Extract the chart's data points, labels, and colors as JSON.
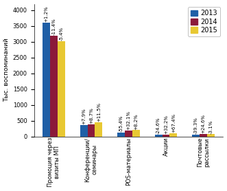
{
  "categories": [
    "Промоция через\nвизиты МП",
    "Конференции/\nсеминары",
    "POS-материалы",
    "Акции",
    "Почтовые\nрассылки"
  ],
  "series": {
    "2013": [
      3600,
      370,
      130,
      50,
      65
    ],
    "2014": [
      3200,
      390,
      190,
      65,
      75
    ],
    "2015": [
      3020,
      450,
      200,
      105,
      70
    ]
  },
  "colors": {
    "2013": "#1F5FA6",
    "2014": "#8B1A3A",
    "2015": "#E8C832"
  },
  "annotations": {
    "2013": [
      "+1.2%",
      "+7.9%",
      "-55.4%",
      "-24.6%",
      "-39.3%"
    ],
    "2014": [
      "-11.4%",
      "+8.7%",
      "+32.1%",
      "+32.2%",
      "+24.6%"
    ],
    "2015": [
      "-5.4%",
      "+11.5%",
      "+8.2%",
      "+67.4%",
      "-3.1%"
    ]
  },
  "ylabel": "Тыс. воспоминаний",
  "ylim": [
    0,
    4200
  ],
  "yticks": [
    0,
    500,
    1000,
    1500,
    2000,
    2500,
    3000,
    3500,
    4000
  ],
  "legend_labels": [
    "2013",
    "2014",
    "2015"
  ],
  "bar_width": 0.2,
  "fontsize_ticks": 6,
  "fontsize_annot": 5,
  "fontsize_ylabel": 6.5,
  "fontsize_legend": 7,
  "background_color": "#FFFFFF"
}
